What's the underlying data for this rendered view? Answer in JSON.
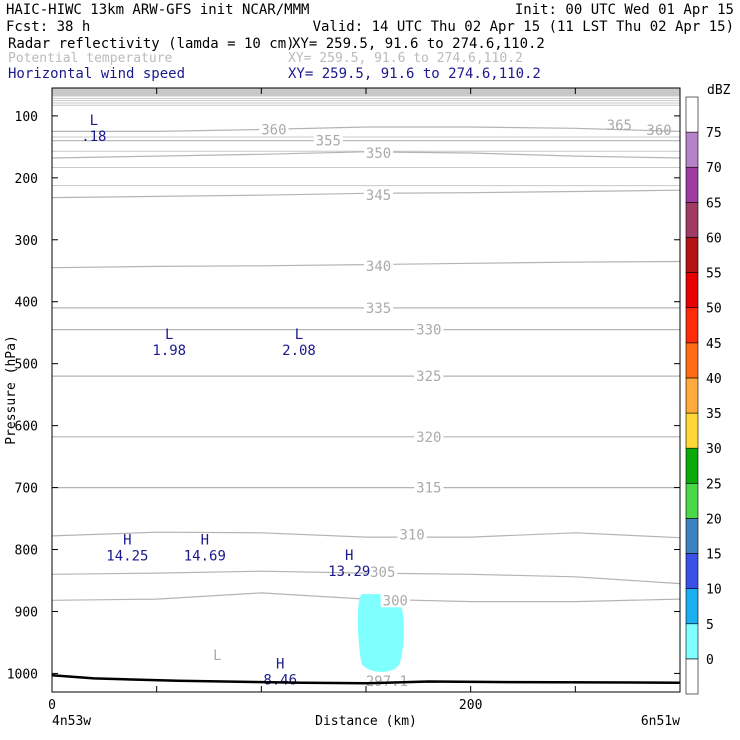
{
  "header": {
    "title_left": "HAIC-HIWC 13km ARW-GFS init    NCAR/MMM",
    "init": "Init: 00 UTC Wed 01 Apr 15",
    "fcst": "Fcst:   38 h",
    "valid": "Valid: 14 UTC Thu 02 Apr 15 (11 LST Thu 02 Apr 15)",
    "fields": [
      {
        "name": "Radar reflectivity (lamda = 10 cm)",
        "xy": "XY= 259.5, 91.6 to 274.6,110.2",
        "color": "#000000"
      },
      {
        "name": "Potential temperature",
        "xy": "XY= 259.5, 91.6 to 274.6,110.2",
        "color": "#bbbbbb"
      },
      {
        "name": "Horizontal wind speed",
        "xy": "XY= 259.5, 91.6 to 274.6,110.2",
        "color": "#1a1a8c"
      }
    ]
  },
  "chart_data": {
    "type": "cross-section",
    "ylabel": "Pressure (hPa)",
    "xlabel": "Distance (km)",
    "x_start_label": "4n53w",
    "x_end_label": "6n51w",
    "xlim": [
      0,
      300
    ],
    "ylim": [
      1030,
      55
    ],
    "x_ticks": [
      0,
      200
    ],
    "x_minor_ticks": [
      50,
      100,
      150,
      250,
      300
    ],
    "y_ticks": [
      100,
      200,
      300,
      400,
      500,
      600,
      700,
      800,
      900,
      1000
    ],
    "theta_contours": [
      {
        "label": "360",
        "y": [
          125,
          125,
          122,
          118,
          118,
          120,
          125
        ],
        "label_x": 106,
        "label_y": 122
      },
      {
        "label": "355",
        "y": [
          140,
          140,
          140,
          140,
          140,
          140,
          140
        ],
        "label_x": 132,
        "label_y": 140
      },
      {
        "label": "350",
        "y": [
          168,
          165,
          162,
          158,
          160,
          165,
          168
        ],
        "label_x": 156,
        "label_y": 160
      },
      {
        "label": "345",
        "y": [
          232,
          230,
          228,
          225,
          224,
          222,
          220
        ],
        "label_x": 156,
        "label_y": 228
      },
      {
        "label": "340",
        "y": [
          345,
          343,
          342,
          340,
          338,
          336,
          335
        ],
        "label_x": 156,
        "label_y": 342
      },
      {
        "label": "335",
        "y": [
          410,
          410,
          410,
          410,
          410,
          410,
          410
        ],
        "label_x": 156,
        "label_y": 410
      },
      {
        "label": "330",
        "y": [
          445,
          445,
          445,
          445,
          445,
          445,
          445
        ],
        "label_x": 180,
        "label_y": 445
      },
      {
        "label": "325",
        "y": [
          520,
          520,
          520,
          520,
          520,
          520,
          520
        ],
        "label_x": 180,
        "label_y": 520
      },
      {
        "label": "320",
        "y": [
          618,
          618,
          618,
          618,
          618,
          618,
          618
        ],
        "label_x": 180,
        "label_y": 618
      },
      {
        "label": "315",
        "y": [
          700,
          700,
          700,
          700,
          700,
          700,
          700
        ],
        "label_x": 180,
        "label_y": 700
      },
      {
        "label": "310",
        "y": [
          778,
          772,
          773,
          780,
          780,
          773,
          781
        ],
        "label_x": 172,
        "label_y": 776
      },
      {
        "label": "305",
        "y": [
          840,
          838,
          835,
          838,
          840,
          844,
          855
        ],
        "label_x": 158,
        "label_y": 836
      },
      {
        "label": "300",
        "y": [
          882,
          880,
          870,
          880,
          884,
          884,
          880
        ],
        "label_x": 164,
        "label_y": 882
      },
      {
        "label": "365",
        "y": [],
        "label_x": 271,
        "label_y": 115
      },
      {
        "label": "360",
        "y": [],
        "label_x": 290,
        "label_y": 123
      },
      {
        "label": "297.1",
        "y": [],
        "label_x": 160,
        "label_y": 1012
      }
    ],
    "wind_extrema": [
      {
        "kind": "L",
        "value": ".18",
        "x": 20,
        "p": 115
      },
      {
        "kind": "L",
        "value": "1.98",
        "x": 56,
        "p": 460
      },
      {
        "kind": "L",
        "value": "2.08",
        "x": 118,
        "p": 460
      },
      {
        "kind": "H",
        "value": "14.25",
        "x": 36,
        "p": 792
      },
      {
        "kind": "H",
        "value": "14.69",
        "x": 73,
        "p": 792
      },
      {
        "kind": "H",
        "value": "13.29",
        "x": 142,
        "p": 817
      },
      {
        "kind": "H",
        "value": "8.46",
        "x": 109,
        "p": 992
      }
    ],
    "theta_low": {
      "kind": "L",
      "x": 79,
      "p": 978
    },
    "reflectivity_region": {
      "dbz": 5,
      "color": "#80ffff"
    },
    "colorbar": {
      "unit": "dBZ",
      "levels": [
        0,
        5,
        10,
        15,
        20,
        25,
        30,
        35,
        40,
        45,
        50,
        55,
        60,
        65,
        70,
        75
      ],
      "colors": [
        "#ffffff",
        "#80ffff",
        "#1ab0f0",
        "#3a50e6",
        "#3c82c0",
        "#48d848",
        "#0aaa0a",
        "#ffd838",
        "#ffaa3c",
        "#ff6a14",
        "#ff2a0a",
        "#e80000",
        "#b41414",
        "#a03c64",
        "#9e3ca0",
        "#b682c8",
        "#ffffff"
      ]
    }
  }
}
